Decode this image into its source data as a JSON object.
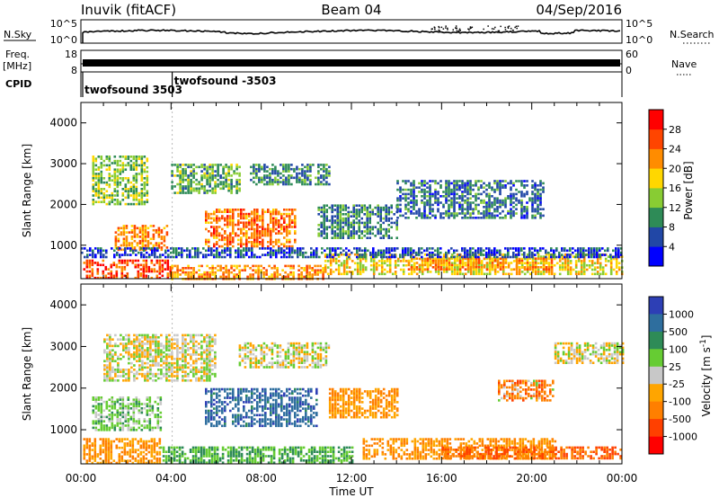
{
  "header": {
    "station": "Inuvik (fitACF)",
    "beam": "Beam 04",
    "date": "04/Sep/2016"
  },
  "top_panels": {
    "nsky_label": "N.Sky",
    "nsky_ticks": [
      "10^5",
      "10^0"
    ],
    "nsearch_label": "N.Search",
    "freq_label_1": "Freq.",
    "freq_label_2": "[MHz]",
    "freq_ticks": [
      "18",
      "8"
    ],
    "nave_label": "Nave",
    "nave_ticks": [
      "60",
      "0"
    ],
    "cpid_label": "CPID",
    "cpid_entries": [
      {
        "text": "twofsound 3503",
        "time": 0.08
      },
      {
        "text": "twofsound -3503",
        "time": 4.05
      }
    ]
  },
  "chart_data": [
    {
      "type": "heatmap",
      "name": "power",
      "xlabel": "",
      "ylabel": "Slant Range [km]",
      "xlim": [
        0,
        24
      ],
      "ylim": [
        180,
        4500
      ],
      "yticks": [
        1000,
        2000,
        3000,
        4000
      ],
      "colorbar": {
        "label": "Power [dB]",
        "ticks": [
          4,
          8,
          12,
          16,
          20,
          24,
          28
        ],
        "range": [
          0,
          32
        ],
        "colors": [
          "#0000ff",
          "#2147a6",
          "#2e8b57",
          "#88cc33",
          "#ffd700",
          "#ff8c00",
          "#ff4500",
          "#ff0000"
        ]
      },
      "features": [
        {
          "t0": 0.1,
          "t1": 4.0,
          "r0": 200,
          "r1": 650,
          "value": 26
        },
        {
          "t0": 4.0,
          "t1": 10.8,
          "r0": 200,
          "r1": 520,
          "value": 22
        },
        {
          "t0": 10.8,
          "t1": 24.0,
          "r0": 300,
          "r1": 800,
          "value": 18
        },
        {
          "t0": 14.5,
          "t1": 21.0,
          "r0": 400,
          "r1": 700,
          "value": 22
        },
        {
          "t0": 1.5,
          "t1": 3.8,
          "r0": 900,
          "r1": 1500,
          "value": 22
        },
        {
          "t0": 5.5,
          "t1": 9.5,
          "r0": 1000,
          "r1": 1900,
          "value": 24
        },
        {
          "t0": 0.5,
          "t1": 3.0,
          "r0": 2000,
          "r1": 3200,
          "value": 14
        },
        {
          "t0": 4.0,
          "t1": 7.0,
          "r0": 2300,
          "r1": 3000,
          "value": 12
        },
        {
          "t0": 7.5,
          "t1": 11.0,
          "r0": 2500,
          "r1": 3000,
          "value": 10
        },
        {
          "t0": 10.5,
          "t1": 14.0,
          "r0": 1200,
          "r1": 2000,
          "value": 9
        },
        {
          "t0": 14.0,
          "t1": 20.5,
          "r0": 1700,
          "r1": 2600,
          "value": 8
        },
        {
          "t0": 0.0,
          "t1": 24.0,
          "r0": 700,
          "r1": 950,
          "value": 6
        }
      ]
    },
    {
      "type": "heatmap",
      "name": "velocity",
      "xlabel": "Time UT",
      "ylabel": "Slant Range [km]",
      "xlim": [
        0,
        24
      ],
      "ylim": [
        180,
        4500
      ],
      "xticks": [
        "00:00",
        "04:00",
        "08:00",
        "12:00",
        "16:00",
        "20:00",
        "00:00"
      ],
      "yticks": [
        1000,
        2000,
        3000,
        4000
      ],
      "colorbar": {
        "label": "Velocity [m s",
        "label_sup": "-1",
        "label_end": "]",
        "ticks": [
          "1000",
          "500",
          "100",
          "25",
          "-25",
          "-100",
          "-500",
          "-1000"
        ],
        "colors": [
          "#2d3fb5",
          "#2e6e9e",
          "#2e8b57",
          "#66cc33",
          "#c8c8c8",
          "#ffa500",
          "#ff7f00",
          "#ff4000",
          "#ff0000"
        ]
      },
      "features": [
        {
          "t0": 0.1,
          "t1": 3.5,
          "r0": 200,
          "r1": 800,
          "value": -100
        },
        {
          "t0": 3.5,
          "t1": 12.0,
          "r0": 200,
          "r1": 600,
          "value": 100
        },
        {
          "t0": 12.5,
          "t1": 21.0,
          "r0": 300,
          "r1": 800,
          "value": -100
        },
        {
          "t0": 16.0,
          "t1": 24.0,
          "r0": 300,
          "r1": 600,
          "value": -500
        },
        {
          "t0": 5.5,
          "t1": 10.5,
          "r0": 1100,
          "r1": 2000,
          "value": 800
        },
        {
          "t0": 1.0,
          "t1": 6.0,
          "r0": 2200,
          "r1": 3300,
          "value": 0
        },
        {
          "t0": 7.0,
          "t1": 11.0,
          "r0": 2500,
          "r1": 3100,
          "value": 0
        },
        {
          "t0": 0.5,
          "t1": 3.5,
          "r0": 1000,
          "r1": 1800,
          "value": 60
        },
        {
          "t0": 11.0,
          "t1": 14.0,
          "r0": 1300,
          "r1": 2000,
          "value": -100
        },
        {
          "t0": 18.5,
          "t1": 21.0,
          "r0": 1700,
          "r1": 2200,
          "value": -300
        },
        {
          "t0": 21.0,
          "t1": 24.0,
          "r0": 2600,
          "r1": 3100,
          "value": 0
        }
      ]
    }
  ]
}
